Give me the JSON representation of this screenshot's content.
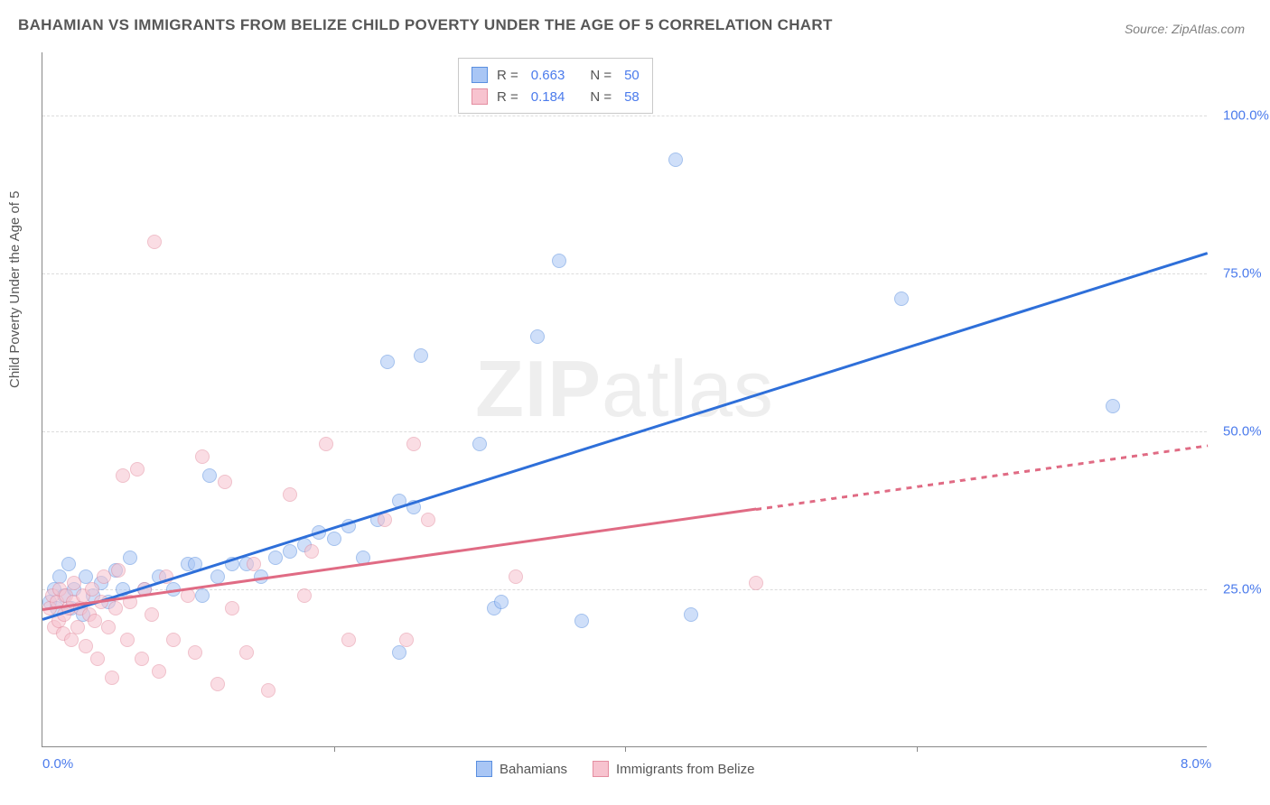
{
  "title": "BAHAMIAN VS IMMIGRANTS FROM BELIZE CHILD POVERTY UNDER THE AGE OF 5 CORRELATION CHART",
  "source": "Source: ZipAtlas.com",
  "watermark": {
    "bold": "ZIP",
    "rest": "atlas"
  },
  "chart": {
    "type": "scatter",
    "ylabel": "Child Poverty Under the Age of 5",
    "xlim": [
      0,
      8
    ],
    "ylim": [
      0,
      110
    ],
    "x_ticks": [
      {
        "v": 0.0,
        "label": "0.0%"
      },
      {
        "v": 8.0,
        "label": "8.0%"
      }
    ],
    "x_tick_marks": [
      2.0,
      4.0,
      6.0
    ],
    "y_gridlines": [
      25,
      50,
      75,
      100
    ],
    "y_tick_labels": [
      "25.0%",
      "50.0%",
      "75.0%",
      "100.0%"
    ],
    "grid_color": "#dcdcdc",
    "axis_color": "#888888",
    "tick_label_color": "#4b7bec",
    "background_color": "#ffffff",
    "marker_radius": 8,
    "marker_opacity": 0.55,
    "series": [
      {
        "name": "Bahamians",
        "fill": "#a9c6f5",
        "stroke": "#5a8fe0",
        "trend_color": "#2e6fd9",
        "R": "0.663",
        "N": "50",
        "trend": {
          "x0": 0.0,
          "y0": 20.5,
          "x1": 8.0,
          "y1": 78.5,
          "solid_until_x": 8.0
        },
        "points": [
          [
            0.05,
            23
          ],
          [
            0.08,
            25
          ],
          [
            0.1,
            22
          ],
          [
            0.12,
            27
          ],
          [
            0.15,
            24
          ],
          [
            0.18,
            29
          ],
          [
            0.2,
            22
          ],
          [
            0.22,
            25
          ],
          [
            0.28,
            21
          ],
          [
            0.3,
            27
          ],
          [
            0.35,
            24
          ],
          [
            0.4,
            26
          ],
          [
            0.45,
            23
          ],
          [
            0.5,
            28
          ],
          [
            0.55,
            25
          ],
          [
            0.6,
            30
          ],
          [
            0.7,
            25
          ],
          [
            0.8,
            27
          ],
          [
            0.9,
            25
          ],
          [
            1.0,
            29
          ],
          [
            1.05,
            29
          ],
          [
            1.1,
            24
          ],
          [
            1.15,
            43
          ],
          [
            1.2,
            27
          ],
          [
            1.3,
            29
          ],
          [
            1.4,
            29
          ],
          [
            1.5,
            27
          ],
          [
            1.6,
            30
          ],
          [
            1.7,
            31
          ],
          [
            1.8,
            32
          ],
          [
            1.9,
            34
          ],
          [
            2.0,
            33
          ],
          [
            2.1,
            35
          ],
          [
            2.2,
            30
          ],
          [
            2.3,
            36
          ],
          [
            2.37,
            61
          ],
          [
            2.45,
            39
          ],
          [
            2.45,
            15
          ],
          [
            2.55,
            38
          ],
          [
            2.6,
            62
          ],
          [
            3.0,
            48
          ],
          [
            3.1,
            22
          ],
          [
            3.15,
            23
          ],
          [
            3.4,
            65
          ],
          [
            3.55,
            77
          ],
          [
            3.7,
            20
          ],
          [
            4.35,
            93
          ],
          [
            4.45,
            21
          ],
          [
            5.9,
            71
          ],
          [
            7.35,
            54
          ]
        ]
      },
      {
        "name": "Immigrants from Belize",
        "fill": "#f7c3cf",
        "stroke": "#e48da0",
        "trend_color": "#e06b84",
        "R": "0.184",
        "N": "58",
        "trend": {
          "x0": 0.0,
          "y0": 22.0,
          "x1": 8.0,
          "y1": 48.0,
          "solid_until_x": 4.9
        },
        "points": [
          [
            0.05,
            22
          ],
          [
            0.07,
            24
          ],
          [
            0.08,
            19
          ],
          [
            0.1,
            23
          ],
          [
            0.11,
            20
          ],
          [
            0.12,
            25
          ],
          [
            0.14,
            18
          ],
          [
            0.15,
            21
          ],
          [
            0.16,
            24
          ],
          [
            0.18,
            22
          ],
          [
            0.2,
            17
          ],
          [
            0.21,
            23
          ],
          [
            0.22,
            26
          ],
          [
            0.24,
            19
          ],
          [
            0.26,
            22
          ],
          [
            0.28,
            24
          ],
          [
            0.3,
            16
          ],
          [
            0.32,
            21
          ],
          [
            0.34,
            25
          ],
          [
            0.36,
            20
          ],
          [
            0.38,
            14
          ],
          [
            0.4,
            23
          ],
          [
            0.42,
            27
          ],
          [
            0.45,
            19
          ],
          [
            0.48,
            11
          ],
          [
            0.5,
            22
          ],
          [
            0.52,
            28
          ],
          [
            0.55,
            43
          ],
          [
            0.58,
            17
          ],
          [
            0.6,
            23
          ],
          [
            0.65,
            44
          ],
          [
            0.68,
            14
          ],
          [
            0.7,
            25
          ],
          [
            0.75,
            21
          ],
          [
            0.8,
            12
          ],
          [
            0.85,
            27
          ],
          [
            0.9,
            17
          ],
          [
            0.77,
            80
          ],
          [
            1.0,
            24
          ],
          [
            1.05,
            15
          ],
          [
            1.1,
            46
          ],
          [
            1.2,
            10
          ],
          [
            1.25,
            42
          ],
          [
            1.3,
            22
          ],
          [
            1.4,
            15
          ],
          [
            1.45,
            29
          ],
          [
            1.55,
            9
          ],
          [
            1.7,
            40
          ],
          [
            1.8,
            24
          ],
          [
            1.85,
            31
          ],
          [
            1.95,
            48
          ],
          [
            2.1,
            17
          ],
          [
            2.35,
            36
          ],
          [
            2.5,
            17
          ],
          [
            2.55,
            48
          ],
          [
            2.65,
            36
          ],
          [
            3.25,
            27
          ],
          [
            4.9,
            26
          ]
        ]
      }
    ],
    "legend_bottom": [
      {
        "label": "Bahamians",
        "fill": "#a9c6f5",
        "stroke": "#5a8fe0"
      },
      {
        "label": "Immigrants from Belize",
        "fill": "#f7c3cf",
        "stroke": "#e48da0"
      }
    ]
  }
}
